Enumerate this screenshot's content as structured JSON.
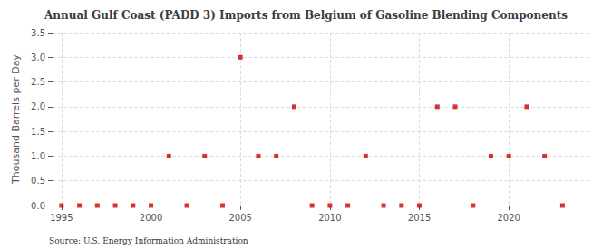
{
  "chart_data": {
    "type": "scatter",
    "title": "Annual Gulf Coast (PADD 3) Imports from Belgium of Gasoline Blending Components",
    "ylabel": "Thousand Barrels per Day",
    "annotation": "Source: U.S. Energy Information Administration",
    "x": [
      1995,
      1996,
      1997,
      1998,
      1999,
      2000,
      2001,
      2002,
      2003,
      2004,
      2005,
      2006,
      2007,
      2008,
      2009,
      2010,
      2011,
      2012,
      2013,
      2014,
      2015,
      2016,
      2017,
      2018,
      2019,
      2020,
      2021,
      2022,
      2023
    ],
    "values": [
      0.0,
      0.0,
      0.0,
      0.0,
      0.0,
      0.0,
      1.0,
      0.0,
      1.0,
      0.0,
      3.0,
      1.0,
      1.0,
      2.0,
      0.0,
      0.0,
      0.0,
      1.0,
      0.0,
      0.0,
      0.0,
      2.0,
      2.0,
      0.0,
      1.0,
      1.0,
      2.0,
      1.0,
      0.0
    ],
    "color": "#cc0000",
    "marker": "square",
    "xlim": [
      1994.5,
      2024.5
    ],
    "xticks": [
      1995,
      2000,
      2005,
      2010,
      2015,
      2020
    ],
    "ylim": [
      0.0,
      3.5
    ],
    "yticks": [
      {
        "value": 0,
        "label": "0.0"
      },
      0.5,
      {
        "value": 1,
        "label": "1.0"
      },
      1.5,
      {
        "value": 2,
        "label": "2.0"
      },
      2.5,
      {
        "value": 3,
        "label": "3.0"
      },
      3.5
    ],
    "grid": true
  }
}
